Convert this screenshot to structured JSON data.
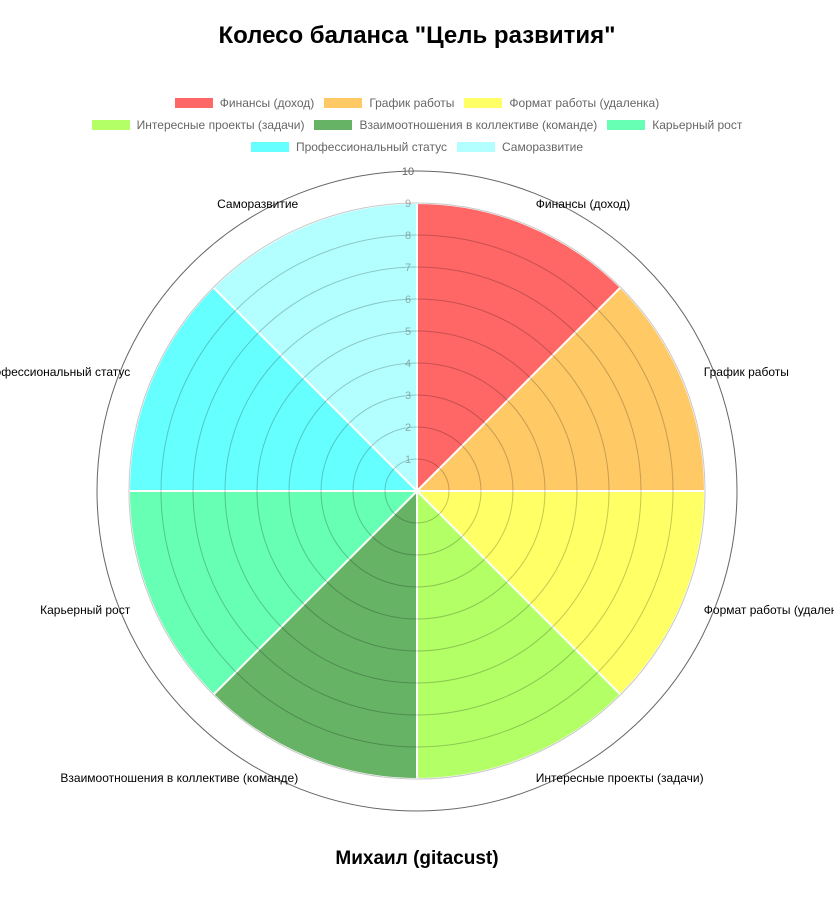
{
  "chart_data": {
    "type": "polarArea",
    "title": "Колесо баланса \"Цель развития\"",
    "subtitle": "Михаил (gitacust)",
    "categories": [
      "Финансы (доход)",
      "График работы",
      "Формат работы (удаленка)",
      "Интересные проекты (задачи)",
      "Взаимоотношения в коллективе (команде)",
      "Карьерный рост",
      "Профессиональный статус",
      "Саморазвитие"
    ],
    "values": [
      9,
      9,
      9,
      9,
      9,
      9,
      9,
      9
    ],
    "colors": [
      "#ff6666",
      "#ffc966",
      "#ffff66",
      "#b3ff66",
      "#66b366",
      "#66ffb3",
      "#66ffff",
      "#b3ffff"
    ],
    "r_range": [
      0,
      10
    ],
    "r_ticks": [
      "1",
      "2",
      "3",
      "4",
      "5",
      "6",
      "7",
      "8",
      "9",
      "10"
    ],
    "legend_position": "top",
    "grid": true
  }
}
